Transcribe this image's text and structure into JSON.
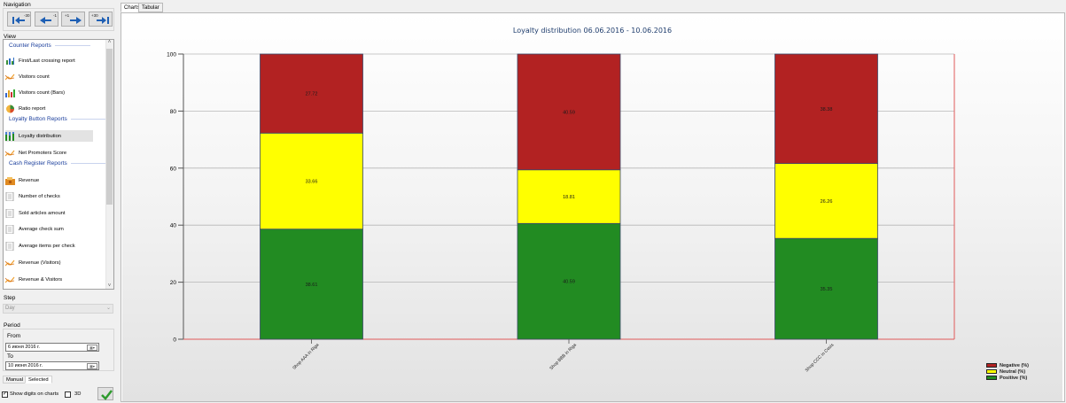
{
  "navigation": {
    "group_label": "Navigation",
    "buttons": [
      {
        "label": "-30",
        "icon": "double-arrow-left-icon"
      },
      {
        "label": "-1",
        "icon": "arrow-left-icon"
      },
      {
        "label": "+1",
        "icon": "arrow-right-icon"
      },
      {
        "label": "+30",
        "icon": "double-arrow-right-icon"
      }
    ]
  },
  "view": {
    "group_label": "View",
    "sections": [
      "Counter Reports",
      "Loyalty Button Reports",
      "Cash Register Reports"
    ],
    "items": [
      {
        "label": "First/Last crossing report",
        "icon": "crossing-report-icon"
      },
      {
        "label": "Visitors count",
        "icon": "line-chart-icon"
      },
      {
        "label": "Visitors count (Bars)",
        "icon": "bar-chart-icon"
      },
      {
        "label": "Ratio report",
        "icon": "pie-chart-icon"
      },
      {
        "label": "Loyalty distribution",
        "icon": "stacked-bar-icon"
      },
      {
        "label": "Net Promoters Score",
        "icon": "line-chart-icon"
      },
      {
        "label": "Revenue",
        "icon": "revenue-icon"
      },
      {
        "label": "Number of checks",
        "icon": "document-icon"
      },
      {
        "label": "Sold articles amount",
        "icon": "document-icon"
      },
      {
        "label": "Average check sum",
        "icon": "document-icon"
      },
      {
        "label": "Average items per check",
        "icon": "document-icon"
      },
      {
        "label": "Revenue (Visitors)",
        "icon": "line-chart-icon"
      },
      {
        "label": "Revenue & Visitors",
        "icon": "line-chart-icon"
      }
    ],
    "selected": "Loyalty distribution"
  },
  "step": {
    "group_label": "Step",
    "value": "Day"
  },
  "period": {
    "group_label": "Period",
    "from_label": "From",
    "from_value": "6   июня   2016 г.",
    "to_label": "To",
    "to_value": "10   июня   2016 г.",
    "tabs": [
      "Manual",
      "Selected"
    ],
    "active_tab": "Selected"
  },
  "options": {
    "show_digits_label": "Show digits on charts",
    "show_digits_checked": true,
    "threed_label": "3D",
    "threed_checked": false
  },
  "tabs": [
    "Charts",
    "Tabular"
  ],
  "active_tab": "Charts",
  "chart_data": {
    "type": "bar",
    "stacked": true,
    "title": "Loyalty distribution 06.06.2016 - 10.06.2016",
    "categories": [
      "Shop AAA in Riga",
      "Shop BBB in Riga",
      "Shop CCC in Cesis"
    ],
    "series": [
      {
        "name": "Positive (%)",
        "values": [
          38.61,
          40.59,
          35.35
        ],
        "color": "#228b22"
      },
      {
        "name": "Neutral (%)",
        "values": [
          33.66,
          18.81,
          26.26
        ],
        "color": "#ffff00"
      },
      {
        "name": "Negative (%)",
        "values": [
          27.72,
          40.59,
          38.38
        ],
        "color": "#b22222"
      }
    ],
    "data_labels": {
      "Positive (%)": [
        "38.61",
        "40.59",
        "35.35"
      ],
      "Neutral (%)": [
        "33.66",
        "18.81",
        "26.26"
      ],
      "Negative (%)": [
        "27.72",
        "40.59",
        "38.38"
      ]
    },
    "ylim": [
      0,
      100
    ],
    "yticks": [
      0,
      20,
      40,
      60,
      80,
      100
    ],
    "grid": true,
    "legend_position": "bottom-right",
    "legend_order": [
      "Negative (%)",
      "Neutral (%)",
      "Positive (%)"
    ]
  }
}
